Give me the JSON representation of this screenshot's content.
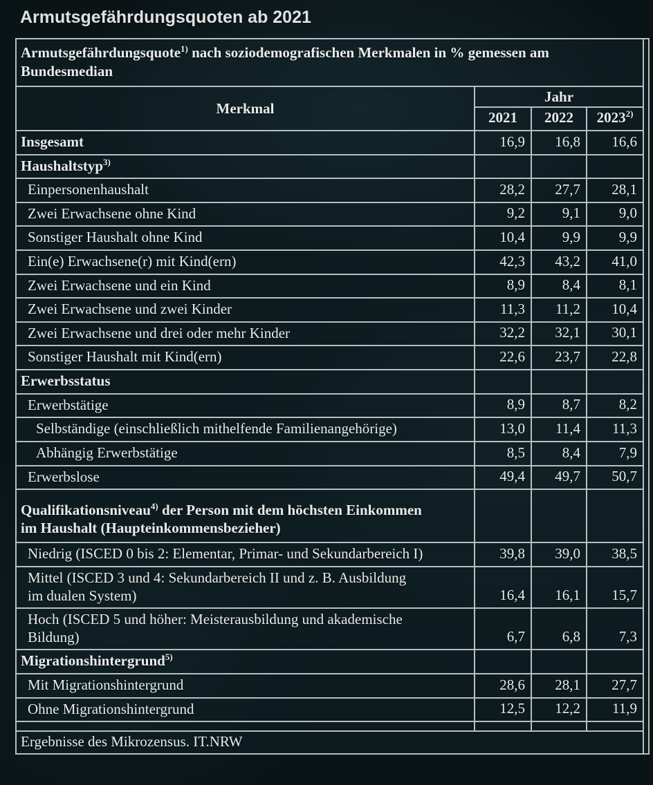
{
  "page_title": "Armutsgefährdungsquoten ab 2021",
  "colors": {
    "background": "#0a1417",
    "border": "#b7bfc1",
    "text": "#e9ebea"
  },
  "table": {
    "title": "Armutsgefährdungsquote",
    "title_footnote": "1)",
    "title_rest": " nach soziodemografischen Merkmalen in % gemessen am\nBundesmedian",
    "col_merkmal": "Merkmal",
    "col_jahr": "Jahr",
    "years": [
      "2021",
      "2022",
      "2023"
    ],
    "year_2023_footnote": "2)",
    "rows": [
      {
        "label": "Insgesamt",
        "bold": true,
        "indent": 0,
        "values": [
          "16,9",
          "16,8",
          "16,6"
        ]
      },
      {
        "label": "Haushaltstyp",
        "footnote": "3)",
        "type": "section",
        "bold": true,
        "indent": 0
      },
      {
        "label": "Einpersonenhaushalt",
        "indent": 1,
        "values": [
          "28,2",
          "27,7",
          "28,1"
        ]
      },
      {
        "label": "Zwei Erwachsene ohne Kind",
        "indent": 1,
        "values": [
          "9,2",
          "9,1",
          "9,0"
        ]
      },
      {
        "label": "Sonstiger Haushalt ohne Kind",
        "indent": 1,
        "values": [
          "10,4",
          "9,9",
          "9,9"
        ]
      },
      {
        "label": "Ein(e) Erwachsene(r) mit Kind(ern)",
        "indent": 1,
        "values": [
          "42,3",
          "43,2",
          "41,0"
        ]
      },
      {
        "label": "Zwei Erwachsene und ein Kind",
        "indent": 1,
        "values": [
          "8,9",
          "8,4",
          "8,1"
        ]
      },
      {
        "label": "Zwei Erwachsene und zwei Kinder",
        "indent": 1,
        "values": [
          "11,3",
          "11,2",
          "10,4"
        ]
      },
      {
        "label": "Zwei Erwachsene und drei oder mehr Kinder",
        "indent": 1,
        "values": [
          "32,2",
          "32,1",
          "30,1"
        ]
      },
      {
        "label": "Sonstiger Haushalt mit Kind(ern)",
        "indent": 1,
        "values": [
          "22,6",
          "23,7",
          "22,8"
        ]
      },
      {
        "label": "Erwerbsstatus",
        "type": "section",
        "bold": true,
        "indent": 0
      },
      {
        "label": "Erwerbstätige",
        "indent": 1,
        "values": [
          "8,9",
          "8,7",
          "8,2"
        ]
      },
      {
        "label": "Selbständige (einschließlich mithelfende Familienangehörige)",
        "indent": 2,
        "values": [
          "13,0",
          "11,4",
          "11,3"
        ]
      },
      {
        "label": "Abhängig Erwerbstätige",
        "indent": 2,
        "values": [
          "8,5",
          "8,4",
          "7,9"
        ]
      },
      {
        "label": "Erwerbslose",
        "indent": 1,
        "values": [
          "49,4",
          "49,7",
          "50,7"
        ]
      },
      {
        "label": "Qualifikationsniveau",
        "footnote": "4)",
        "label_rest": " der Person mit dem höchsten Einkommen\nim Haushalt (Haupteinkommensbezieher)",
        "type": "section",
        "bold": true,
        "indent": 0,
        "multiline": true
      },
      {
        "label": "Niedrig (ISCED 0 bis 2: Elementar, Primar- und Sekundarbereich I)",
        "indent": 1,
        "values": [
          "39,8",
          "39,0",
          "38,5"
        ]
      },
      {
        "label": "Mittel (ISCED 3 und 4: Sekundarbereich II und z. B. Ausbildung\nim dualen System)",
        "indent": 1,
        "values": [
          "16,4",
          "16,1",
          "15,7"
        ]
      },
      {
        "label": "Hoch (ISCED 5 und höher: Meisterausbildung und akademische\nBildung)",
        "indent": 1,
        "values": [
          "6,7",
          "6,8",
          "7,3"
        ]
      },
      {
        "label": "Migrationshintergrund",
        "footnote": "5)",
        "type": "section",
        "bold": true,
        "indent": 0
      },
      {
        "label": "Mit Migrationshintergrund",
        "indent": 1,
        "values": [
          "28,6",
          "28,1",
          "27,7"
        ]
      },
      {
        "label": "Ohne Migrationshintergrund",
        "indent": 1,
        "values": [
          "12,5",
          "12,2",
          "11,9"
        ]
      },
      {
        "type": "spacer"
      }
    ],
    "source": "Ergebnisse des Mikrozensus. IT.NRW"
  },
  "chart_data": {
    "type": "table",
    "title": "Armutsgefährdungsquote nach soziodemografischen Merkmalen in % gemessen am Bundesmedian",
    "unit": "%",
    "columns": [
      "Merkmal",
      "2021",
      "2022",
      "2023"
    ],
    "rows": [
      {
        "section": null,
        "merkmal": "Insgesamt",
        "values": [
          16.9,
          16.8,
          16.6
        ]
      },
      {
        "section": "Haushaltstyp",
        "merkmal": "Einpersonenhaushalt",
        "values": [
          28.2,
          27.7,
          28.1
        ]
      },
      {
        "section": "Haushaltstyp",
        "merkmal": "Zwei Erwachsene ohne Kind",
        "values": [
          9.2,
          9.1,
          9.0
        ]
      },
      {
        "section": "Haushaltstyp",
        "merkmal": "Sonstiger Haushalt ohne Kind",
        "values": [
          10.4,
          9.9,
          9.9
        ]
      },
      {
        "section": "Haushaltstyp",
        "merkmal": "Ein(e) Erwachsene(r) mit Kind(ern)",
        "values": [
          42.3,
          43.2,
          41.0
        ]
      },
      {
        "section": "Haushaltstyp",
        "merkmal": "Zwei Erwachsene und ein Kind",
        "values": [
          8.9,
          8.4,
          8.1
        ]
      },
      {
        "section": "Haushaltstyp",
        "merkmal": "Zwei Erwachsene und zwei Kinder",
        "values": [
          11.3,
          11.2,
          10.4
        ]
      },
      {
        "section": "Haushaltstyp",
        "merkmal": "Zwei Erwachsene und drei oder mehr Kinder",
        "values": [
          32.2,
          32.1,
          30.1
        ]
      },
      {
        "section": "Haushaltstyp",
        "merkmal": "Sonstiger Haushalt mit Kind(ern)",
        "values": [
          22.6,
          23.7,
          22.8
        ]
      },
      {
        "section": "Erwerbsstatus",
        "merkmal": "Erwerbstätige",
        "values": [
          8.9,
          8.7,
          8.2
        ]
      },
      {
        "section": "Erwerbsstatus",
        "merkmal": "Selbständige (einschließlich mithelfende Familienangehörige)",
        "values": [
          13.0,
          11.4,
          11.3
        ]
      },
      {
        "section": "Erwerbsstatus",
        "merkmal": "Abhängig Erwerbstätige",
        "values": [
          8.5,
          8.4,
          7.9
        ]
      },
      {
        "section": "Erwerbsstatus",
        "merkmal": "Erwerbslose",
        "values": [
          49.4,
          49.7,
          50.7
        ]
      },
      {
        "section": "Qualifikationsniveau der Person mit dem höchsten Einkommen im Haushalt (Haupteinkommensbezieher)",
        "merkmal": "Niedrig (ISCED 0 bis 2: Elementar, Primar- und Sekundarbereich I)",
        "values": [
          39.8,
          39.0,
          38.5
        ]
      },
      {
        "section": "Qualifikationsniveau der Person mit dem höchsten Einkommen im Haushalt (Haupteinkommensbezieher)",
        "merkmal": "Mittel (ISCED 3 und 4: Sekundarbereich II und z. B. Ausbildung im dualen System)",
        "values": [
          16.4,
          16.1,
          15.7
        ]
      },
      {
        "section": "Qualifikationsniveau der Person mit dem höchsten Einkommen im Haushalt (Haupteinkommensbezieher)",
        "merkmal": "Hoch (ISCED 5 und höher: Meisterausbildung und akademische Bildung)",
        "values": [
          6.7,
          6.8,
          7.3
        ]
      },
      {
        "section": "Migrationshintergrund",
        "merkmal": "Mit Migrationshintergrund",
        "values": [
          28.6,
          28.1,
          27.7
        ]
      },
      {
        "section": "Migrationshintergrund",
        "merkmal": "Ohne Migrationshintergrund",
        "values": [
          12.5,
          12.2,
          11.9
        ]
      }
    ],
    "source": "Ergebnisse des Mikrozensus. IT.NRW"
  }
}
